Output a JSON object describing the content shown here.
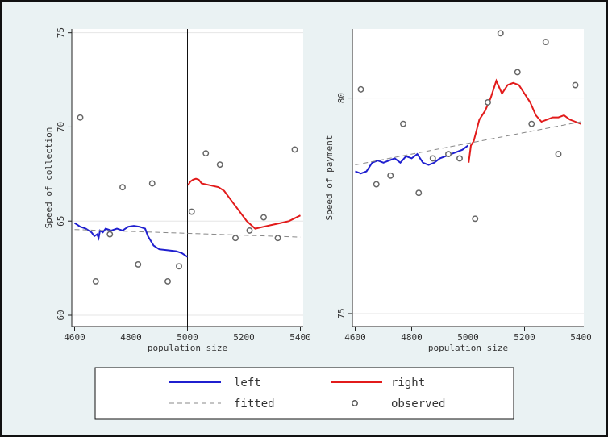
{
  "chart_data": [
    {
      "type": "line",
      "xlabel": "population size",
      "ylabel": "Speed of collection",
      "xlim": [
        4590,
        5410
      ],
      "ylim": [
        59.4,
        75.2
      ],
      "xticks": [
        4600,
        4800,
        5000,
        5200,
        5400
      ],
      "yticks": [
        60,
        65,
        70,
        75
      ],
      "cutoff": 5000,
      "grid": true,
      "series": [
        {
          "name": "left",
          "color": "#1f1fcf",
          "points": [
            [
              4600,
              64.9
            ],
            [
              4620,
              64.7
            ],
            [
              4640,
              64.6
            ],
            [
              4660,
              64.4
            ],
            [
              4670,
              64.2
            ],
            [
              4680,
              64.3
            ],
            [
              4685,
              64.1
            ],
            [
              4690,
              64.5
            ],
            [
              4700,
              64.4
            ],
            [
              4710,
              64.6
            ],
            [
              4730,
              64.5
            ],
            [
              4750,
              64.6
            ],
            [
              4770,
              64.5
            ],
            [
              4790,
              64.7
            ],
            [
              4810,
              64.75
            ],
            [
              4830,
              64.7
            ],
            [
              4850,
              64.6
            ],
            [
              4860,
              64.2
            ],
            [
              4880,
              63.7
            ],
            [
              4900,
              63.5
            ],
            [
              4930,
              63.45
            ],
            [
              4960,
              63.4
            ],
            [
              4980,
              63.3
            ],
            [
              5000,
              63.1
            ]
          ]
        },
        {
          "name": "right",
          "color": "#e21b1b",
          "points": [
            [
              5002,
              66.9
            ],
            [
              5010,
              67.1
            ],
            [
              5020,
              67.2
            ],
            [
              5030,
              67.25
            ],
            [
              5040,
              67.2
            ],
            [
              5050,
              67.0
            ],
            [
              5080,
              66.9
            ],
            [
              5110,
              66.8
            ],
            [
              5130,
              66.6
            ],
            [
              5150,
              66.2
            ],
            [
              5180,
              65.6
            ],
            [
              5210,
              65.0
            ],
            [
              5240,
              64.6
            ],
            [
              5270,
              64.7
            ],
            [
              5300,
              64.8
            ],
            [
              5330,
              64.9
            ],
            [
              5360,
              65.0
            ],
            [
              5400,
              65.3
            ]
          ]
        },
        {
          "name": "fitted",
          "color": "#888888",
          "dashed": true,
          "points": [
            [
              4600,
              64.55
            ],
            [
              5400,
              64.15
            ]
          ]
        }
      ],
      "observed": [
        [
          4620,
          70.5
        ],
        [
          4675,
          61.8
        ],
        [
          4725,
          64.3
        ],
        [
          4770,
          66.8
        ],
        [
          4825,
          62.7
        ],
        [
          4875,
          67.0
        ],
        [
          4930,
          61.8
        ],
        [
          4970,
          62.6
        ],
        [
          5015,
          65.5
        ],
        [
          5065,
          68.6
        ],
        [
          5115,
          68.0
        ],
        [
          5170,
          64.1
        ],
        [
          5220,
          64.5
        ],
        [
          5270,
          65.2
        ],
        [
          5320,
          64.1
        ],
        [
          5380,
          68.8
        ]
      ]
    },
    {
      "type": "line",
      "xlabel": "population size",
      "ylabel": "Speed of payment",
      "xlim": [
        4590,
        5410
      ],
      "ylim": [
        74.7,
        81.6
      ],
      "xticks": [
        4600,
        4800,
        5000,
        5200,
        5400
      ],
      "yticks": [
        75,
        80
      ],
      "cutoff": 5000,
      "grid": true,
      "series": [
        {
          "name": "left",
          "color": "#1f1fcf",
          "points": [
            [
              4600,
              78.3
            ],
            [
              4620,
              78.25
            ],
            [
              4640,
              78.3
            ],
            [
              4660,
              78.5
            ],
            [
              4680,
              78.55
            ],
            [
              4700,
              78.5
            ],
            [
              4720,
              78.55
            ],
            [
              4740,
              78.6
            ],
            [
              4760,
              78.5
            ],
            [
              4780,
              78.65
            ],
            [
              4800,
              78.6
            ],
            [
              4820,
              78.7
            ],
            [
              4840,
              78.5
            ],
            [
              4860,
              78.45
            ],
            [
              4880,
              78.5
            ],
            [
              4900,
              78.6
            ],
            [
              4920,
              78.65
            ],
            [
              4940,
              78.7
            ],
            [
              4960,
              78.75
            ],
            [
              4980,
              78.8
            ],
            [
              5000,
              78.9
            ]
          ]
        },
        {
          "name": "right",
          "color": "#e21b1b",
          "points": [
            [
              5002,
              78.5
            ],
            [
              5010,
              78.9
            ],
            [
              5020,
              79.0
            ],
            [
              5040,
              79.5
            ],
            [
              5060,
              79.7
            ],
            [
              5080,
              80.0
            ],
            [
              5100,
              80.4
            ],
            [
              5120,
              80.1
            ],
            [
              5140,
              80.3
            ],
            [
              5160,
              80.35
            ],
            [
              5180,
              80.3
            ],
            [
              5200,
              80.1
            ],
            [
              5220,
              79.9
            ],
            [
              5240,
              79.6
            ],
            [
              5260,
              79.45
            ],
            [
              5280,
              79.5
            ],
            [
              5300,
              79.55
            ],
            [
              5320,
              79.55
            ],
            [
              5340,
              79.6
            ],
            [
              5360,
              79.5
            ],
            [
              5380,
              79.45
            ],
            [
              5400,
              79.4
            ]
          ]
        },
        {
          "name": "fitted",
          "color": "#888888",
          "dashed": true,
          "points": [
            [
              4600,
              78.45
            ],
            [
              5400,
              79.45
            ]
          ]
        }
      ],
      "observed": [
        [
          4620,
          80.2
        ],
        [
          4675,
          78.0
        ],
        [
          4725,
          78.2
        ],
        [
          4770,
          79.4
        ],
        [
          4825,
          77.8
        ],
        [
          4875,
          78.6
        ],
        [
          4930,
          78.7
        ],
        [
          4970,
          78.6
        ],
        [
          5025,
          77.2
        ],
        [
          5070,
          79.9
        ],
        [
          5115,
          81.5
        ],
        [
          5175,
          80.6
        ],
        [
          5225,
          79.4
        ],
        [
          5275,
          81.3
        ],
        [
          5320,
          78.7
        ],
        [
          5380,
          80.3
        ]
      ]
    }
  ],
  "legend": {
    "items": [
      {
        "label": "left",
        "kind": "line",
        "color": "#1f1fcf"
      },
      {
        "label": "right",
        "kind": "line",
        "color": "#e21b1b"
      },
      {
        "label": "fitted",
        "kind": "dashed",
        "color": "#888888"
      },
      {
        "label": "observed",
        "kind": "marker",
        "color": "#555555"
      }
    ]
  },
  "colors": {
    "background": "#eaf2f3",
    "plot_area": "#ffffff",
    "outer_border": "#111111",
    "cutoff_line": "#111111"
  }
}
